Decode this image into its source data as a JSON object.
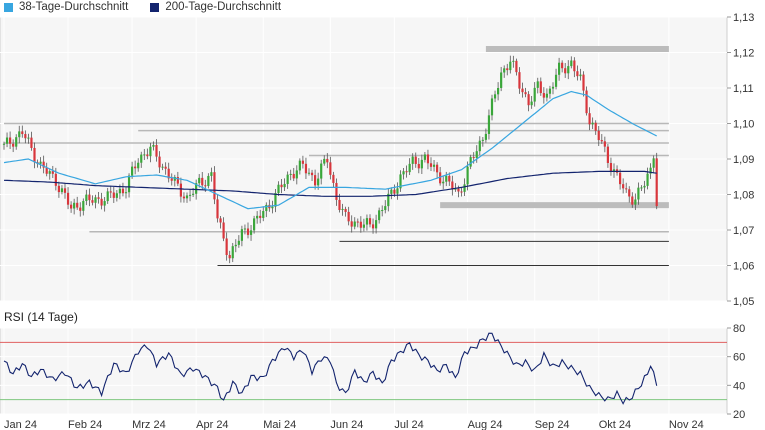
{
  "legend": {
    "ma38": {
      "label": "38-Tage-Durchschnitt",
      "color": "#38a6e0"
    },
    "ma200": {
      "label": "200-Tage-Durchschnitt",
      "color": "#13246e"
    }
  },
  "rsi_label": "RSI (14 Tage)",
  "chart_data": [
    {
      "type": "candlestick",
      "title": "",
      "y_ticks": [
        "1,13",
        "1,12",
        "1,11",
        "1,10",
        "1,09",
        "1,08",
        "1,07",
        "1,06",
        "1,05"
      ],
      "ylim": [
        1.05,
        1.13
      ],
      "x_ticks": [
        "Jan 24",
        "Feb 24",
        "Mrz 24",
        "Apr 24",
        "Mai 24",
        "Jun 24",
        "Jul 24",
        "Aug 24",
        "Sep 24",
        "Okt 24",
        "Nov 24"
      ],
      "x_tick_index": [
        0,
        21,
        42,
        63,
        85,
        107,
        128,
        152,
        174,
        195,
        218
      ],
      "up_color": "#3aa63a",
      "down_color": "#d8363c",
      "close_anchors": [
        [
          0,
          1.0935
        ],
        [
          6,
          1.0975
        ],
        [
          12,
          1.088
        ],
        [
          17,
          1.084
        ],
        [
          22,
          1.076
        ],
        [
          26,
          1.078
        ],
        [
          34,
          1.079
        ],
        [
          40,
          1.082
        ],
        [
          44,
          1.09
        ],
        [
          48,
          1.093
        ],
        [
          52,
          1.088
        ],
        [
          56,
          1.083
        ],
        [
          60,
          1.079
        ],
        [
          64,
          1.083
        ],
        [
          68,
          1.0855
        ],
        [
          70,
          1.073
        ],
        [
          74,
          1.0625
        ],
        [
          78,
          1.069
        ],
        [
          82,
          1.072
        ],
        [
          86,
          1.076
        ],
        [
          90,
          1.081
        ],
        [
          94,
          1.086
        ],
        [
          98,
          1.088
        ],
        [
          102,
          1.084
        ],
        [
          106,
          1.09
        ],
        [
          109,
          1.079
        ],
        [
          112,
          1.073
        ],
        [
          116,
          1.072
        ],
        [
          120,
          1.071
        ],
        [
          124,
          1.076
        ],
        [
          127,
          1.08
        ],
        [
          130,
          1.085
        ],
        [
          134,
          1.089
        ],
        [
          138,
          1.09
        ],
        [
          142,
          1.086
        ],
        [
          146,
          1.083
        ],
        [
          149,
          1.08
        ],
        [
          153,
          1.089
        ],
        [
          157,
          1.096
        ],
        [
          160,
          1.105
        ],
        [
          163,
          1.114
        ],
        [
          166,
          1.118
        ],
        [
          169,
          1.111
        ],
        [
          172,
          1.106
        ],
        [
          175,
          1.11
        ],
        [
          178,
          1.108
        ],
        [
          182,
          1.115
        ],
        [
          186,
          1.117
        ],
        [
          189,
          1.112
        ],
        [
          192,
          1.101
        ],
        [
          195,
          1.096
        ],
        [
          198,
          1.09
        ],
        [
          201,
          1.085
        ],
        [
          204,
          1.08
        ],
        [
          207,
          1.079
        ],
        [
          210,
          1.083
        ],
        [
          212,
          1.087
        ],
        [
          213,
          1.092
        ],
        [
          214,
          1.078
        ]
      ],
      "ma38_anchors": [
        [
          0,
          1.089
        ],
        [
          8,
          1.09
        ],
        [
          18,
          1.086
        ],
        [
          30,
          1.083
        ],
        [
          40,
          1.085
        ],
        [
          50,
          1.0855
        ],
        [
          60,
          1.084
        ],
        [
          70,
          1.08
        ],
        [
          80,
          1.076
        ],
        [
          90,
          1.077
        ],
        [
          100,
          1.082
        ],
        [
          112,
          1.082
        ],
        [
          125,
          1.0815
        ],
        [
          140,
          1.084
        ],
        [
          150,
          1.087
        ],
        [
          160,
          1.093
        ],
        [
          170,
          1.1
        ],
        [
          180,
          1.107
        ],
        [
          186,
          1.109
        ],
        [
          191,
          1.108
        ],
        [
          198,
          1.104
        ],
        [
          206,
          1.1
        ],
        [
          214,
          1.0965
        ]
      ],
      "ma200_anchors": [
        [
          0,
          1.084
        ],
        [
          15,
          1.0835
        ],
        [
          30,
          1.0825
        ],
        [
          45,
          1.082
        ],
        [
          60,
          1.0815
        ],
        [
          75,
          1.081
        ],
        [
          90,
          1.08
        ],
        [
          105,
          1.0795
        ],
        [
          120,
          1.0795
        ],
        [
          135,
          1.08
        ],
        [
          150,
          1.082
        ],
        [
          165,
          1.0845
        ],
        [
          180,
          1.086
        ],
        [
          195,
          1.0865
        ],
        [
          210,
          1.0865
        ],
        [
          214,
          1.086
        ]
      ],
      "support_resistance": [
        {
          "value": 1.121,
          "from": 158,
          "to": 218,
          "style": "band"
        },
        {
          "value": 1.1,
          "from": 0,
          "to": 218,
          "style": "thin"
        },
        {
          "value": 1.098,
          "from": 44,
          "to": 218,
          "style": "thin"
        },
        {
          "value": 1.0945,
          "from": 0,
          "to": 218,
          "style": "thin"
        },
        {
          "value": 1.091,
          "from": 100,
          "to": 218,
          "style": "thin"
        },
        {
          "value": 1.077,
          "from": 143,
          "to": 218,
          "style": "band"
        },
        {
          "value": 1.0695,
          "from": 28,
          "to": 218,
          "style": "thin"
        },
        {
          "value": 1.0668,
          "from": 110,
          "to": 218,
          "style": "dark"
        },
        {
          "value": 1.06,
          "from": 70,
          "to": 218,
          "style": "dark"
        }
      ]
    },
    {
      "type": "line",
      "title": "RSI (14 Tage)",
      "y_ticks": [
        "80",
        "60",
        "40",
        "20"
      ],
      "ylim": [
        20,
        80
      ],
      "upper_line": 70,
      "lower_line": 30,
      "color": "#13246e",
      "anchors": [
        [
          0,
          57
        ],
        [
          3,
          48
        ],
        [
          6,
          55
        ],
        [
          9,
          46
        ],
        [
          12,
          51
        ],
        [
          16,
          44
        ],
        [
          20,
          49
        ],
        [
          24,
          38
        ],
        [
          28,
          42
        ],
        [
          32,
          35
        ],
        [
          36,
          55
        ],
        [
          40,
          48
        ],
        [
          44,
          64
        ],
        [
          47,
          68
        ],
        [
          50,
          55
        ],
        [
          54,
          62
        ],
        [
          58,
          47
        ],
        [
          62,
          52
        ],
        [
          66,
          46
        ],
        [
          70,
          38
        ],
        [
          72,
          29
        ],
        [
          75,
          42
        ],
        [
          78,
          34
        ],
        [
          81,
          46
        ],
        [
          85,
          45
        ],
        [
          88,
          57
        ],
        [
          92,
          67
        ],
        [
          95,
          60
        ],
        [
          98,
          65
        ],
        [
          101,
          50
        ],
        [
          104,
          59
        ],
        [
          107,
          58
        ],
        [
          109,
          41
        ],
        [
          112,
          34
        ],
        [
          115,
          50
        ],
        [
          118,
          42
        ],
        [
          121,
          49
        ],
        [
          124,
          41
        ],
        [
          127,
          57
        ],
        [
          130,
          63
        ],
        [
          133,
          69
        ],
        [
          136,
          61
        ],
        [
          139,
          57
        ],
        [
          142,
          50
        ],
        [
          145,
          54
        ],
        [
          148,
          45
        ],
        [
          151,
          63
        ],
        [
          154,
          66
        ],
        [
          157,
          72
        ],
        [
          160,
          76
        ],
        [
          162,
          70
        ],
        [
          165,
          62
        ],
        [
          168,
          54
        ],
        [
          171,
          56
        ],
        [
          174,
          50
        ],
        [
          177,
          61
        ],
        [
          180,
          53
        ],
        [
          183,
          56
        ],
        [
          186,
          52
        ],
        [
          189,
          48
        ],
        [
          192,
          38
        ],
        [
          195,
          33
        ],
        [
          198,
          30
        ],
        [
          201,
          34
        ],
        [
          203,
          29
        ],
        [
          205,
          30
        ],
        [
          208,
          38
        ],
        [
          211,
          48
        ],
        [
          212,
          55
        ],
        [
          214,
          40
        ]
      ]
    }
  ]
}
